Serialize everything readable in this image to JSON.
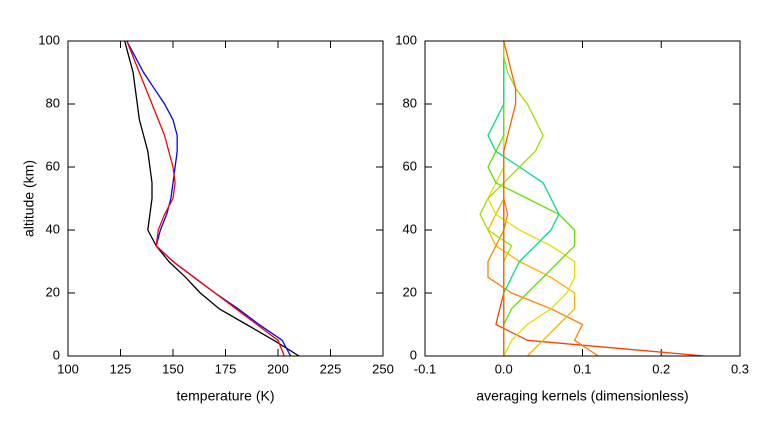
{
  "chart_data": [
    {
      "type": "line",
      "xlabel": "temperature (K)",
      "ylabel": "altitude (km)",
      "xlim": [
        100,
        250
      ],
      "xticks": [
        100,
        125,
        150,
        175,
        200,
        225,
        250
      ],
      "ylim": [
        0,
        100
      ],
      "yticks": [
        0,
        20,
        40,
        60,
        80,
        100
      ],
      "y": [
        0,
        5,
        10,
        15,
        20,
        25,
        30,
        35,
        40,
        45,
        50,
        55,
        60,
        65,
        70,
        75,
        80,
        85,
        90,
        95,
        100
      ],
      "series": [
        {
          "color": "#000000",
          "values": [
            210,
            198,
            185,
            172,
            163,
            156,
            148,
            142,
            138,
            139,
            140,
            140,
            139,
            138,
            136,
            134,
            133,
            132,
            131,
            129,
            127
          ]
        },
        {
          "color": "#0000ff",
          "values": [
            206,
            202,
            191,
            181,
            170,
            160,
            150,
            142,
            144,
            147,
            149,
            150,
            151,
            152,
            152,
            150,
            146,
            141,
            136,
            132,
            128
          ]
        },
        {
          "color": "#ff0000",
          "values": [
            203,
            200,
            190,
            180,
            170,
            160,
            150,
            142,
            143,
            146,
            150,
            151,
            150,
            148,
            146,
            143,
            140,
            137,
            134,
            131,
            128
          ]
        }
      ]
    },
    {
      "type": "line",
      "xlabel": "averaging kernels (dimensionless)",
      "xlim": [
        -0.1,
        0.3
      ],
      "xticks": [
        -0.1,
        {
          "value": 0,
          "label": "0.0"
        },
        0.1,
        0.2,
        0.3
      ],
      "ylim": [
        0,
        100
      ],
      "yticks": [
        0,
        20,
        40,
        60,
        80,
        100
      ],
      "y": [
        0,
        5,
        10,
        15,
        20,
        25,
        30,
        35,
        40,
        45,
        50,
        55,
        60,
        65,
        70,
        75,
        80,
        85,
        90,
        95,
        100
      ],
      "series": [
        {
          "color": "#ff4000",
          "values": [
            0.255,
            0.03,
            -0.01,
            -0.005,
            0,
            0,
            0,
            0,
            0,
            0,
            0,
            0,
            0,
            0,
            0,
            0,
            0,
            0,
            0,
            0,
            0
          ]
        },
        {
          "color": "#ff8000",
          "values": [
            0.12,
            0.09,
            0.1,
            0.06,
            0.01,
            -0.02,
            -0.02,
            -0.01,
            0,
            0.005,
            0,
            0,
            0,
            0,
            0,
            0,
            0,
            0,
            0,
            0,
            0
          ]
        },
        {
          "color": "#ffb000",
          "values": [
            0.03,
            0.05,
            0.07,
            0.09,
            0.09,
            0.06,
            0.02,
            -0.01,
            -0.02,
            -0.01,
            0,
            0,
            0,
            0,
            0,
            0,
            0,
            0,
            0,
            0,
            0
          ]
        },
        {
          "color": "#e0e000",
          "values": [
            0,
            0.01,
            0.03,
            0.06,
            0.08,
            0.09,
            0.09,
            0.06,
            0.02,
            -0.01,
            -0.02,
            -0.01,
            0,
            0,
            0,
            0,
            0,
            0,
            0,
            0,
            0
          ]
        },
        {
          "color": "#60e000",
          "values": [
            0,
            0,
            0,
            0.01,
            0.03,
            0.05,
            0.07,
            0.09,
            0.09,
            0.07,
            0.03,
            -0.01,
            -0.02,
            -0.01,
            0,
            0,
            0,
            0,
            0,
            0,
            0
          ]
        },
        {
          "color": "#00e080",
          "values": [
            0,
            0,
            0,
            0,
            0,
            0.01,
            0.02,
            0.04,
            0.06,
            0.07,
            0.06,
            0.05,
            0.02,
            -0.01,
            -0.02,
            -0.01,
            0,
            0,
            0,
            0,
            0
          ]
        },
        {
          "color": "#a0e000",
          "values": [
            0,
            0,
            0,
            0,
            0,
            0,
            0,
            0.01,
            -0.02,
            -0.03,
            -0.02,
            0,
            0.02,
            0.04,
            0.05,
            0.04,
            0.03,
            0.015,
            0.005,
            0,
            0
          ]
        },
        {
          "color": "#ff6000",
          "values": [
            0,
            0,
            0,
            0,
            0,
            0,
            0,
            0,
            0,
            0,
            0,
            0,
            0,
            0,
            0.005,
            0.01,
            0.015,
            0.015,
            0.01,
            0.005,
            0
          ]
        }
      ]
    }
  ]
}
